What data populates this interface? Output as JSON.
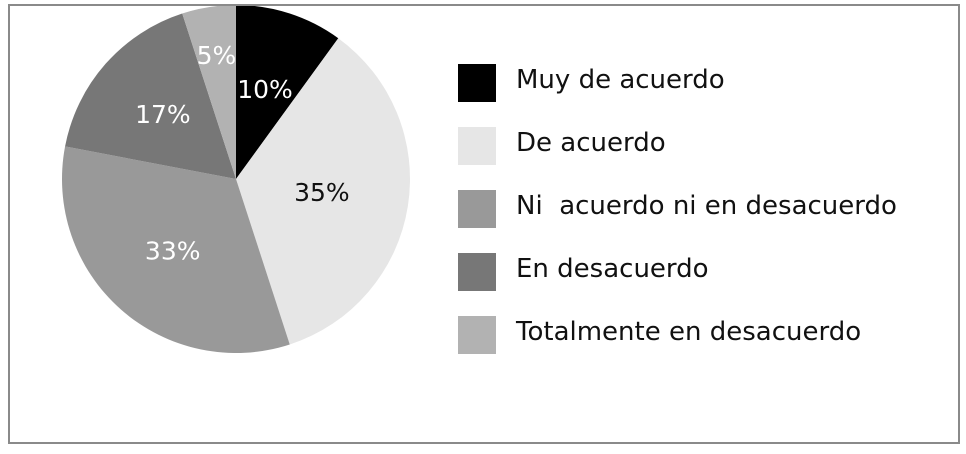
{
  "chart_data": {
    "type": "pie",
    "categories": [
      "Muy de acuerdo",
      "De acuerdo",
      "Ni  acuerdo ni en desacuerdo",
      "En desacuerdo",
      "Totalmente en desacuerdo"
    ],
    "values": [
      10,
      35,
      33,
      17,
      5
    ],
    "labels": [
      "10%",
      "35%",
      "33%",
      "17%",
      "5%"
    ],
    "colors": [
      "#000000",
      "#e6e6e6",
      "#999999",
      "#777777",
      "#b2b2b2"
    ],
    "label_colors": [
      "#ffffff",
      "#111111",
      "#ffffff",
      "#ffffff",
      "#ffffff"
    ],
    "legend_placement": "right",
    "title": "",
    "start": "top",
    "direction": "clockwise"
  }
}
